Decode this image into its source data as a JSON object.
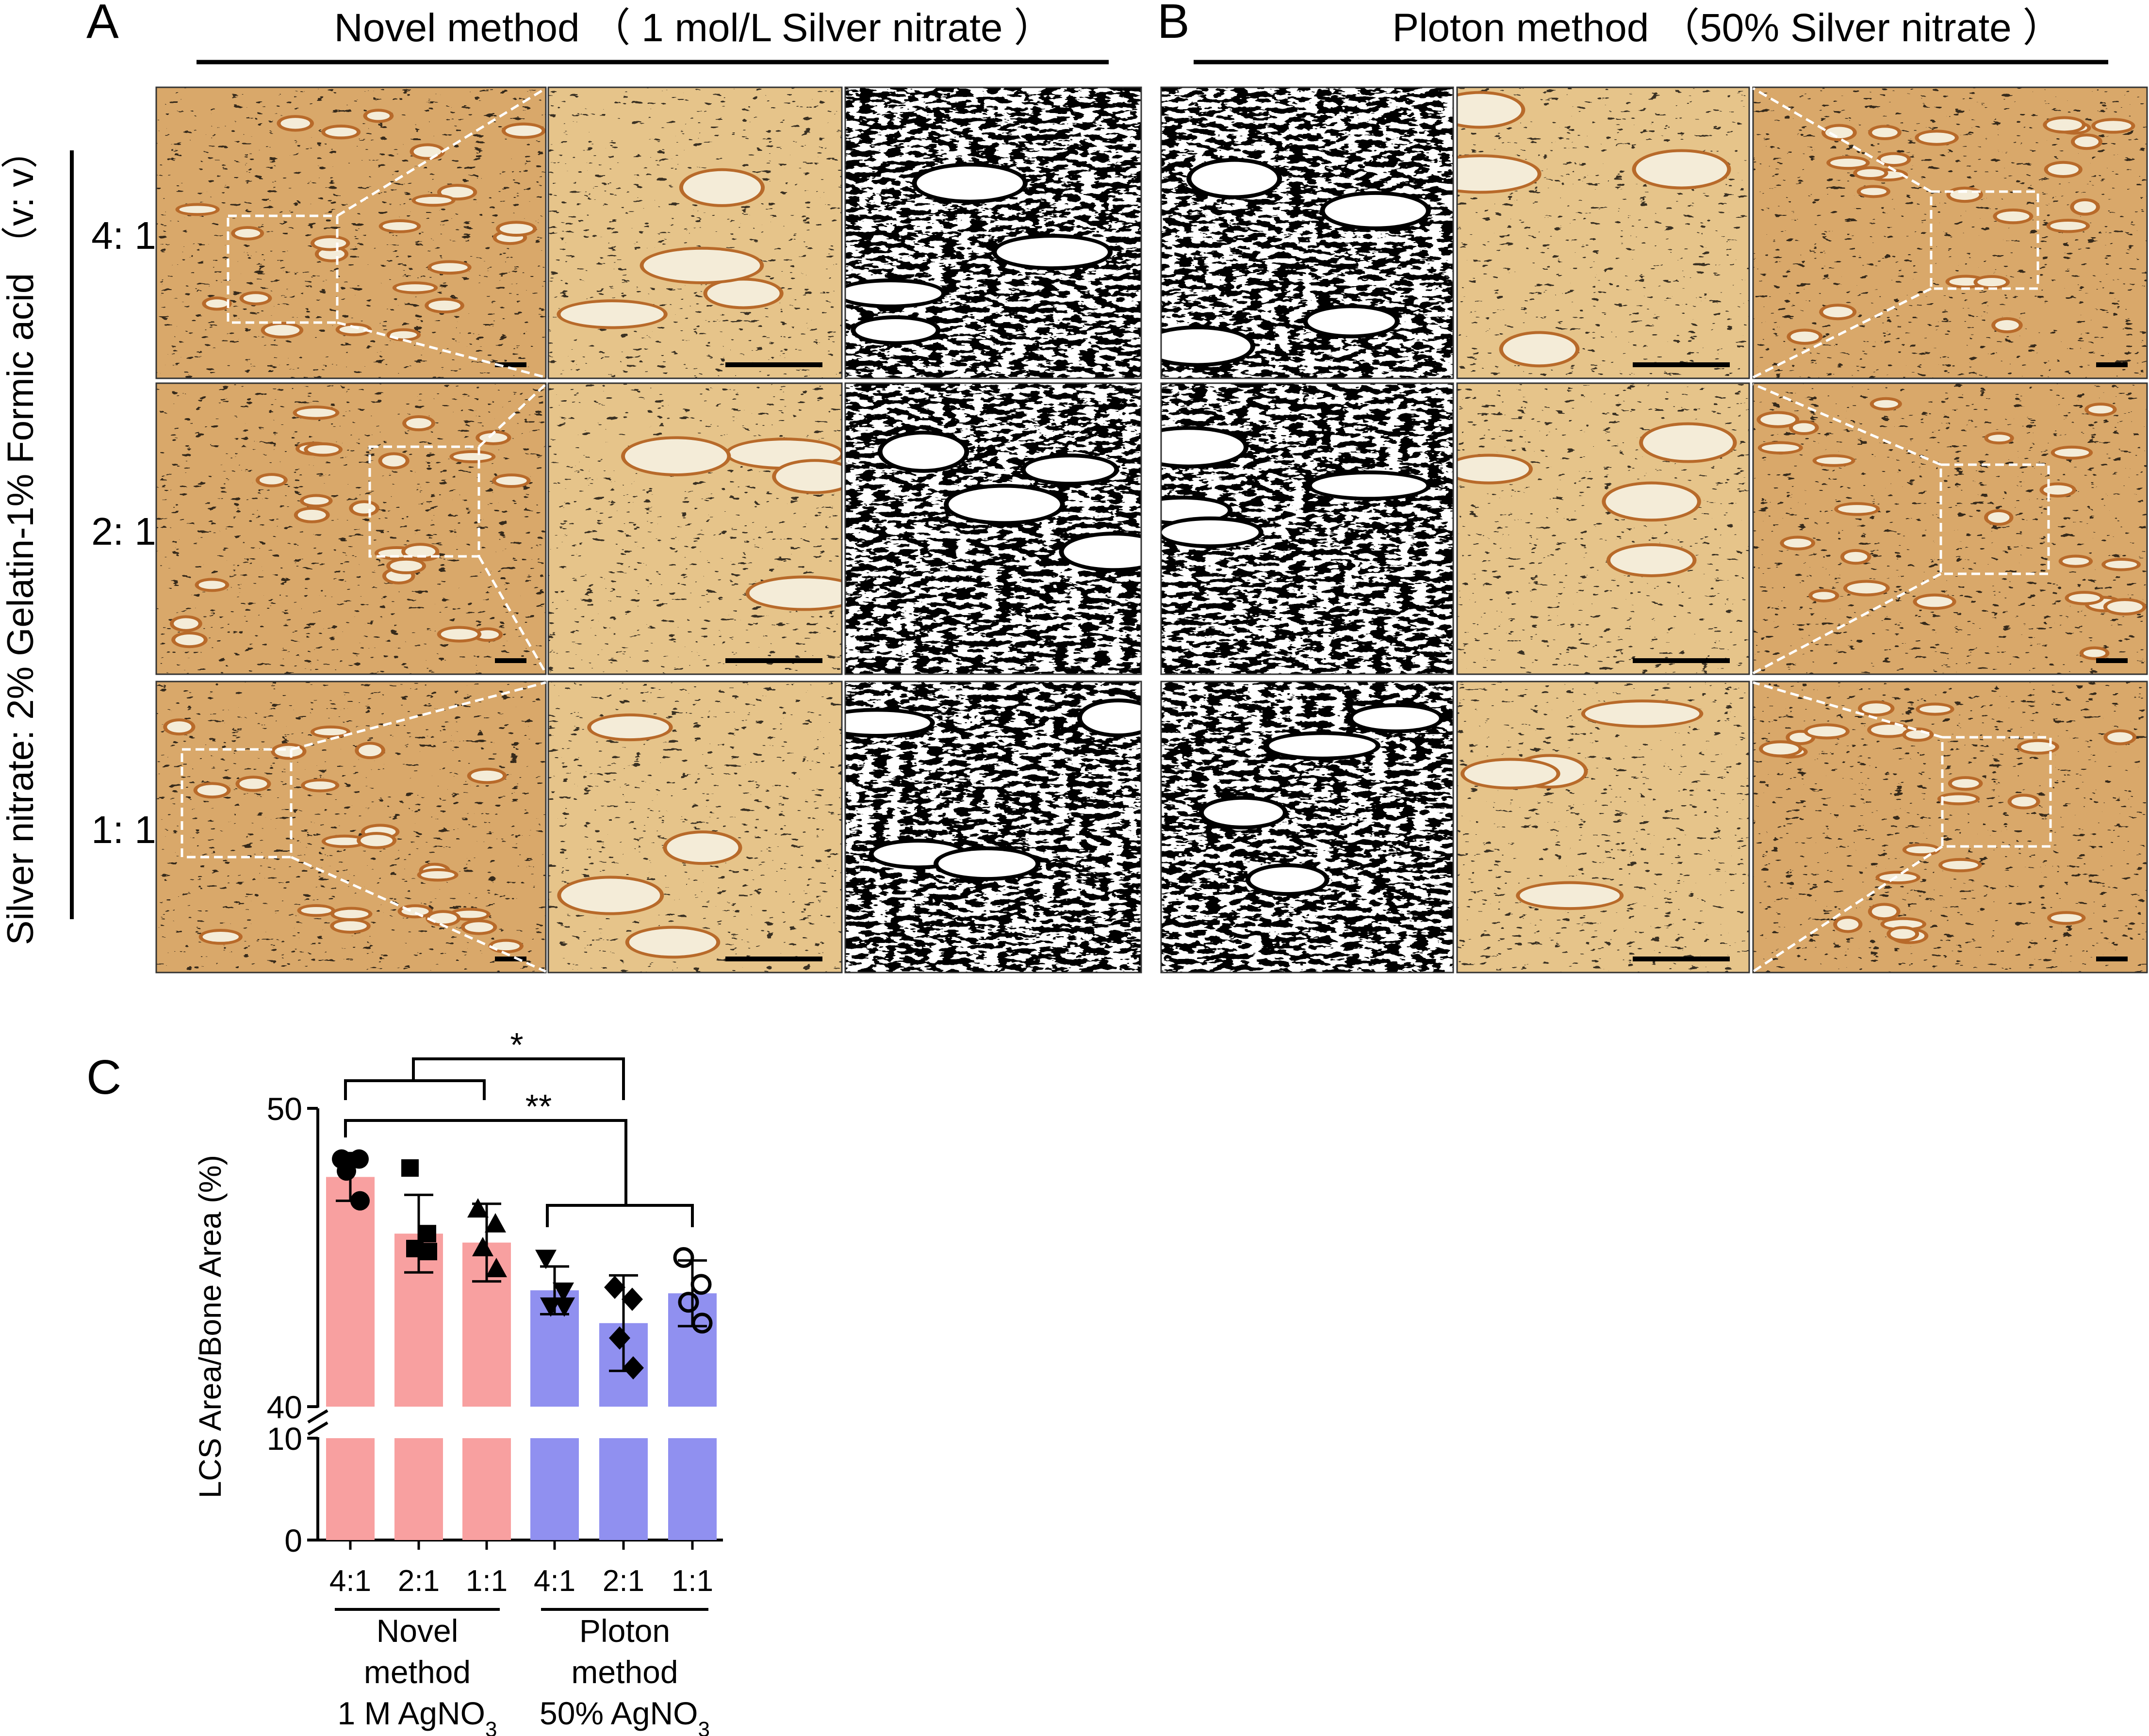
{
  "figure": {
    "panel_labels": {
      "a": "A",
      "b": "B",
      "c": "C"
    },
    "panel_a_title": "Novel method （ 1 mol/L Silver nitrate ）",
    "panel_b_title": "Ploton method （50% Silver nitrate ）",
    "row_axis_label": "Silver nitrate: 2% Gelatin-1% Formic acid （v: v）",
    "row_labels": [
      "4: 1",
      "2: 1",
      "1: 1"
    ],
    "image_tiles": {
      "panel_a": [
        "bright-field stained bone section (overview)",
        "magnified inset",
        "binarized lacunar-canalicular network"
      ],
      "panel_b": [
        "binarized lacunar-canalicular network",
        "magnified inset",
        "bright-field stained bone section (overview)"
      ]
    },
    "colors": {
      "stain_light": "#e6c48a",
      "stain_dark": "#5a2a10",
      "novel_bar": "#f8a0a0",
      "ploton_bar": "#9090f0"
    }
  },
  "chart_data": {
    "type": "bar",
    "ylabel": "LCS Area/Bone Area (%)",
    "y_axis_break": {
      "lower": [
        0,
        10
      ],
      "upper": [
        40,
        50
      ]
    },
    "y_ticks": [
      "0",
      "10",
      "40",
      "50"
    ],
    "categories": [
      "4:1",
      "2:1",
      "1:1",
      "4:1",
      "2:1",
      "1:1"
    ],
    "groups": [
      {
        "label_lines": [
          "Novel",
          "method",
          "1 M AgNO3"
        ],
        "color": "#f8a0a0"
      },
      {
        "label_lines": [
          "Ploton",
          "method",
          "50% AgNO3"
        ],
        "color": "#9090f0"
      }
    ],
    "series": [
      {
        "values": [
          47.7,
          45.8,
          45.5,
          43.9,
          42.8,
          43.8
        ],
        "error": [
          0.8,
          1.3,
          1.3,
          0.8,
          1.6,
          1.1
        ],
        "markers": [
          "circle",
          "square",
          "triangle-up",
          "triangle-down",
          "diamond",
          "open-circle"
        ],
        "points": [
          [
            48.3,
            48.3,
            47.9,
            46.9
          ],
          [
            48.0,
            45.8,
            45.3,
            45.2
          ],
          [
            46.6,
            46.1,
            45.3,
            44.6
          ],
          [
            45.0,
            43.9,
            43.4,
            43.4
          ],
          [
            44.0,
            43.6,
            42.3,
            41.3
          ],
          [
            45.0,
            44.1,
            43.5,
            42.8
          ]
        ]
      }
    ],
    "significance": [
      {
        "label": "*",
        "between": "novel 2:1 and 1:1 vs ploton 2:1"
      },
      {
        "label": "**",
        "between": "novel 4:1 vs ploton group"
      }
    ]
  }
}
